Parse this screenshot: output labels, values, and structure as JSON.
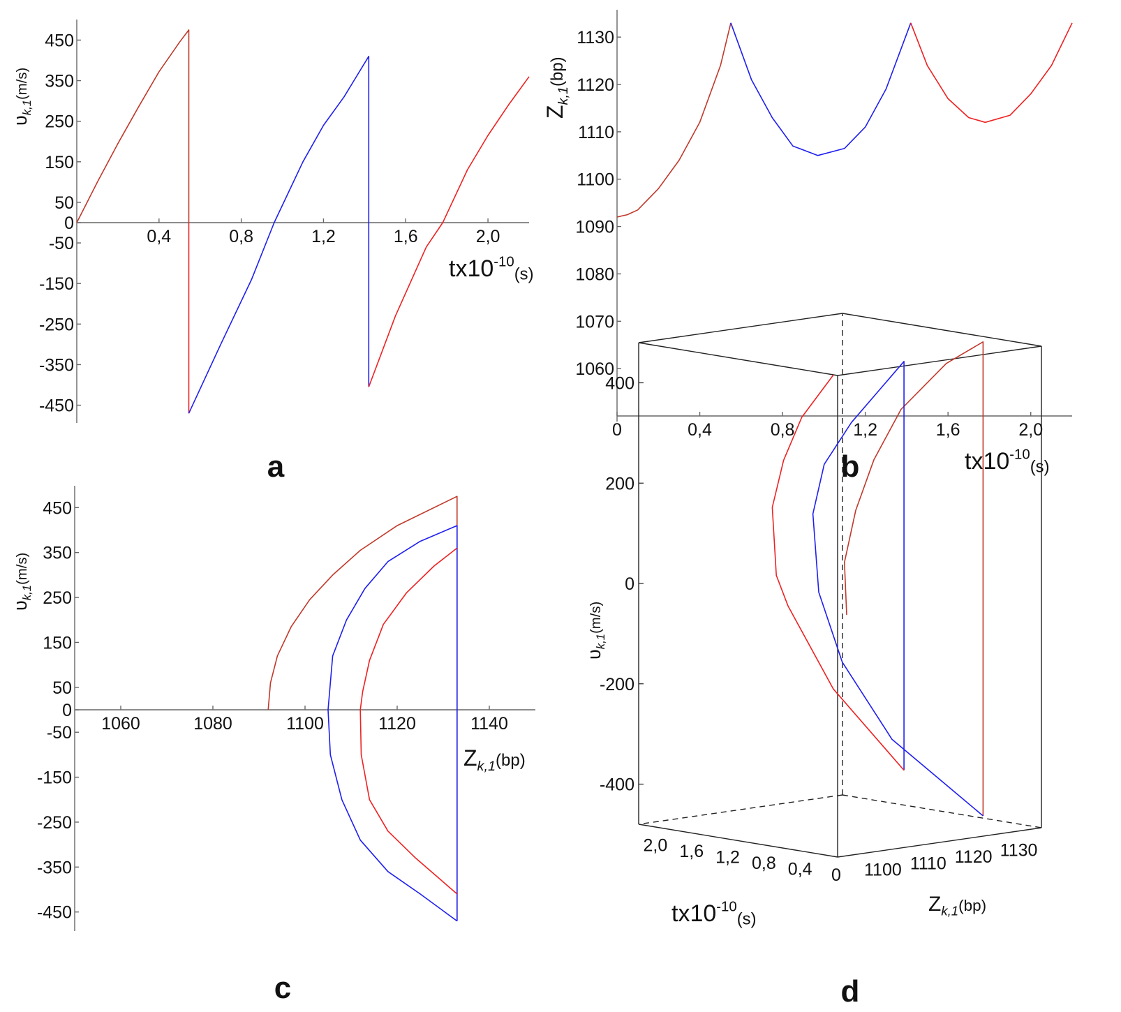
{
  "colors": {
    "series_a": "#c0392b",
    "series_b": "#1f1ff0",
    "series_c": "#ee2222",
    "axis": "#666666"
  },
  "chart_data": [
    {
      "id": "a",
      "panel_label": "a",
      "type": "line",
      "xlabel": {
        "base": "tx10",
        "sup": "-10",
        "unit": "(s)"
      },
      "ylabel": {
        "symbol": "υ",
        "sub": "k,1",
        "unit": "(m/s)"
      },
      "xlim": [
        0,
        2.2
      ],
      "ylim": [
        -480,
        480
      ],
      "xticks": [
        0.4,
        0.8,
        1.2,
        1.6,
        2.0
      ],
      "xtick_labels": [
        "0,4",
        "0,8",
        "1,2",
        "1,6",
        "2,0"
      ],
      "yticks": [
        450,
        350,
        250,
        150,
        50,
        0,
        -50,
        -150,
        -250,
        -350,
        -450
      ],
      "ytick_labels": [
        "450",
        "350",
        "250",
        "150",
        "50",
        "0",
        "-50",
        "-150",
        "-250",
        "-350",
        "-450"
      ],
      "series": [
        {
          "color_key": "series_a",
          "x": [
            0,
            0.1,
            0.2,
            0.3,
            0.4,
            0.5,
            0.545,
            0.545
          ],
          "y": [
            0,
            100,
            195,
            285,
            372,
            445,
            475,
            0
          ]
        },
        {
          "color_key": "series_c",
          "x": [
            0.545,
            0.545
          ],
          "y": [
            0,
            -470
          ]
        },
        {
          "color_key": "series_b",
          "x": [
            0.545,
            0.7,
            0.85,
            0.96,
            1.1,
            1.2,
            1.3,
            1.42,
            1.42
          ],
          "y": [
            -470,
            -300,
            -140,
            0,
            150,
            240,
            310,
            410,
            -405
          ]
        },
        {
          "color_key": "series_c",
          "x": [
            1.42,
            1.55,
            1.7,
            1.78,
            1.9,
            2.0,
            2.1,
            2.2
          ],
          "y": [
            -405,
            -230,
            -60,
            0,
            130,
            215,
            290,
            360
          ]
        }
      ]
    },
    {
      "id": "b",
      "panel_label": "b",
      "type": "line",
      "xlabel": {
        "base": "tx10",
        "sup": "-10",
        "unit": "(s)"
      },
      "ylabel": {
        "symbol": "Z",
        "sub": "k,1",
        "unit": "(bp)"
      },
      "xlim": [
        0,
        2.2
      ],
      "ylim": [
        1050,
        1134
      ],
      "xticks": [
        0,
        0.4,
        0.8,
        1.2,
        1.6,
        2.0
      ],
      "xtick_labels": [
        "0",
        "0,4",
        "0,8",
        "1,2",
        "1,6",
        "2,0"
      ],
      "yticks": [
        1130,
        1120,
        1110,
        1100,
        1090,
        1080,
        1070,
        1060
      ],
      "ytick_labels": [
        "1130",
        "1120",
        "1110",
        "1100",
        "1090",
        "1080",
        "1070",
        "1060"
      ],
      "series": [
        {
          "color_key": "series_a",
          "x": [
            0,
            0.05,
            0.1,
            0.2,
            0.3,
            0.4,
            0.5,
            0.55
          ],
          "y": [
            1092,
            1092.5,
            1093.5,
            1098,
            1104,
            1112,
            1124,
            1133
          ]
        },
        {
          "color_key": "series_b",
          "x": [
            0.55,
            0.65,
            0.75,
            0.85,
            0.97,
            1.1,
            1.2,
            1.3,
            1.42
          ],
          "y": [
            1133,
            1121,
            1113,
            1107,
            1105,
            1106.5,
            1111,
            1119,
            1133
          ]
        },
        {
          "color_key": "series_c",
          "x": [
            1.42,
            1.5,
            1.6,
            1.7,
            1.78,
            1.9,
            2.0,
            2.1,
            2.2
          ],
          "y": [
            1133,
            1124,
            1117,
            1113,
            1112,
            1113.5,
            1118,
            1124,
            1133
          ]
        }
      ]
    },
    {
      "id": "c",
      "panel_label": "c",
      "type": "line",
      "xlabel": {
        "symbol": "Z",
        "sub": "k,1",
        "unit": "(bp)"
      },
      "ylabel": {
        "symbol": "υ",
        "sub": "k,1",
        "unit": "(m/s)"
      },
      "xlim": [
        1050,
        1150
      ],
      "ylim": [
        -480,
        480
      ],
      "xticks": [
        1060,
        1080,
        1100,
        1120,
        1140
      ],
      "xtick_labels": [
        "1060",
        "1080",
        "1100",
        "1120",
        "1140"
      ],
      "yticks": [
        450,
        350,
        250,
        150,
        50,
        0,
        -50,
        -150,
        -250,
        -350,
        -450
      ],
      "ytick_labels": [
        "450",
        "350",
        "250",
        "150",
        "50",
        "0",
        "-50",
        "-150",
        "-250",
        "-350",
        "-450"
      ],
      "series": [
        {
          "color_key": "series_a",
          "x": [
            1092,
            1092.5,
            1094,
            1097,
            1101,
            1106,
            1112,
            1120,
            1133,
            1133
          ],
          "y": [
            0,
            60,
            120,
            185,
            245,
            300,
            355,
            410,
            475,
            -470
          ]
        },
        {
          "color_key": "series_b",
          "x": [
            1133,
            1133,
            1125,
            1118,
            1113,
            1109,
            1106,
            1105,
            1105.5,
            1108,
            1112,
            1118,
            1125,
            1133
          ],
          "y": [
            -470,
            410,
            375,
            330,
            270,
            200,
            120,
            0,
            -100,
            -200,
            -290,
            -360,
            -410,
            -470
          ]
        },
        {
          "color_key": "series_c",
          "x": [
            1133,
            1128,
            1122,
            1117,
            1114,
            1112.5,
            1112,
            1112.2,
            1114,
            1118,
            1124,
            1133
          ],
          "y": [
            360,
            320,
            260,
            190,
            110,
            40,
            0,
            -100,
            -200,
            -270,
            -330,
            -410
          ]
        }
      ]
    },
    {
      "id": "d",
      "panel_label": "d",
      "type": "line",
      "projection": "3d",
      "xlabel": {
        "base": "tx10",
        "sup": "-10",
        "unit": "(s)"
      },
      "ylabel": {
        "symbol": "Z",
        "sub": "k,1",
        "unit": "(bp)"
      },
      "zlabel": {
        "symbol": "υ",
        "sub": "k,1",
        "unit": "(m/s)"
      },
      "xlim": [
        0,
        2.2
      ],
      "ylim": [
        1090,
        1135
      ],
      "zlim": [
        -480,
        480
      ],
      "xticks": [
        0,
        0.4,
        0.8,
        1.2,
        1.6,
        2.0
      ],
      "xtick_labels": [
        "0",
        "0,4",
        "0,8",
        "1,2",
        "1,6",
        "2,0"
      ],
      "yticks": [
        1100,
        1110,
        1120,
        1130
      ],
      "ytick_labels": [
        "1100",
        "1110",
        "1120",
        "1130"
      ],
      "zticks": [
        400,
        200,
        0,
        -200,
        -400
      ],
      "ztick_labels": [
        "400",
        "200",
        "0",
        "-200",
        "-400"
      ],
      "series": [
        {
          "color_key": "series_a",
          "t": [
            0,
            0.1,
            0.2,
            0.3,
            0.4,
            0.5,
            0.545,
            0.545
          ],
          "z": [
            1092,
            1093.5,
            1098,
            1104,
            1112,
            1124,
            1133,
            1133
          ],
          "v": [
            0,
            100,
            195,
            285,
            372,
            445,
            475,
            -470
          ]
        },
        {
          "color_key": "series_b",
          "t": [
            0.545,
            0.7,
            0.85,
            0.96,
            1.1,
            1.2,
            1.3,
            1.42,
            1.42
          ],
          "z": [
            1133,
            1116,
            1108,
            1105,
            1106.5,
            1111,
            1119,
            1133,
            1133
          ],
          "v": [
            -470,
            -300,
            -140,
            0,
            150,
            240,
            310,
            410,
            -405
          ]
        },
        {
          "color_key": "series_c",
          "t": [
            1.42,
            1.55,
            1.7,
            1.78,
            1.9,
            2.0,
            2.1,
            2.2
          ],
          "z": [
            1133,
            1120,
            1113,
            1112,
            1113.5,
            1118,
            1124,
            1133
          ],
          "v": [
            -405,
            -230,
            -60,
            0,
            130,
            215,
            290,
            360
          ]
        }
      ]
    }
  ]
}
